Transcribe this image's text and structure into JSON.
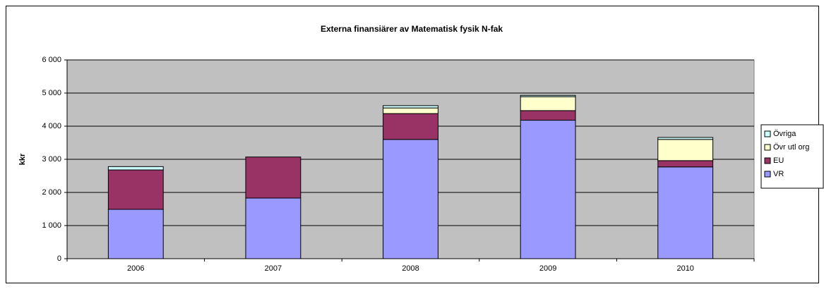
{
  "chart_data": {
    "type": "stacked_bar",
    "title": "Externa finansiärer av Matematisk fysik N-fak",
    "ylabel": "kkr",
    "categories": [
      "2006",
      "2007",
      "2008",
      "2009",
      "2010"
    ],
    "series": [
      {
        "name": "VR",
        "color": "#9999ff",
        "values": [
          1490,
          1830,
          3600,
          4180,
          2770
        ]
      },
      {
        "name": "EU",
        "color": "#993366",
        "values": [
          1190,
          1240,
          780,
          290,
          190
        ]
      },
      {
        "name": "Övr utl org",
        "color": "#ffffcc",
        "values": [
          0,
          0,
          170,
          420,
          640
        ]
      },
      {
        "name": "Övriga",
        "color": "#ccffff",
        "values": [
          100,
          0,
          70,
          40,
          60
        ]
      }
    ],
    "ylim": [
      0,
      6000
    ],
    "yticks": [
      0,
      {
        "value": 1000,
        "label": "1 000"
      },
      {
        "value": 2000,
        "label": "2 000"
      },
      {
        "value": 3000,
        "label": "3 000"
      },
      {
        "value": 4000,
        "label": "4 000"
      },
      {
        "value": 5000,
        "label": "5 000"
      },
      {
        "value": 6000,
        "label": "6 000"
      }
    ],
    "grid": true,
    "legend": "right"
  }
}
